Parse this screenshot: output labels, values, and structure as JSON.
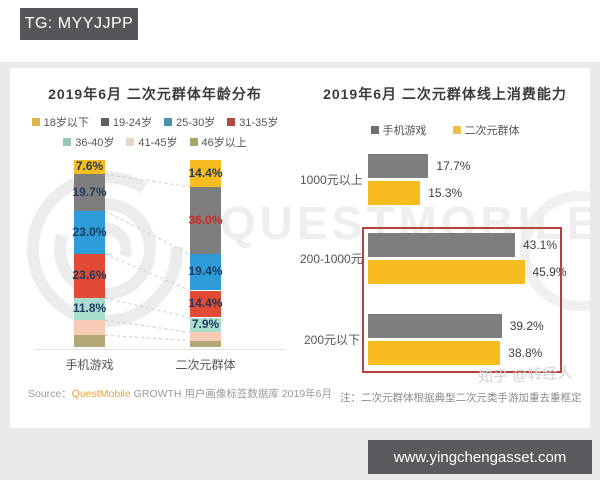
{
  "page": {
    "tg_badge": "TG: MYYJJPP",
    "url_badge": "www.yingchengasset.com",
    "watermark_brand": "QUESTMOBILE",
    "watermark_user": "知乎 @转经人"
  },
  "colors": {
    "badge_bg": "#55565a",
    "highlight_box": "#b5433c",
    "connector_line": "#cccccc",
    "label_navy": "#1d3a5e",
    "label_red": "#d02a20",
    "source_brand_orange": "#e8a23c"
  },
  "chart_data": [
    {
      "type": "bar",
      "subtype": "stacked-column",
      "title": "2019年6月 二次元群体年龄分布",
      "unit": "%",
      "categories": [
        "手机游戏",
        "二次元群体"
      ],
      "legend": [
        {
          "label": "18岁以下",
          "color": "#dfb44c"
        },
        {
          "label": "19-24岁",
          "color": "#5f5f5f"
        },
        {
          "label": "25-30岁",
          "color": "#4493ae"
        },
        {
          "label": "31-35岁",
          "color": "#ae4a3e"
        },
        {
          "label": "36-40岁",
          "color": "#97c9b4"
        },
        {
          "label": "41-45岁",
          "color": "#edd5c6"
        },
        {
          "label": "46岁以上",
          "color": "#a6a468"
        }
      ],
      "series": [
        {
          "name": "18岁以下",
          "color": "#f7bc1f",
          "values": [
            7.6,
            14.4
          ],
          "show_label": [
            true,
            true
          ],
          "label_colors": [
            null,
            null
          ]
        },
        {
          "name": "19-24岁",
          "color": "#7e7e7e",
          "values": [
            19.7,
            36.0
          ],
          "show_label": [
            true,
            true
          ],
          "label_colors": [
            null,
            "#d02a20"
          ]
        },
        {
          "name": "25-30岁",
          "color": "#2d9cd9",
          "values": [
            23.0,
            19.4
          ],
          "show_label": [
            true,
            true
          ],
          "label_colors": [
            null,
            null
          ]
        },
        {
          "name": "31-35岁",
          "color": "#e14b36",
          "values": [
            23.6,
            14.4
          ],
          "show_label": [
            true,
            true
          ],
          "label_colors": [
            null,
            null
          ]
        },
        {
          "name": "36-40岁",
          "color": "#a9dece",
          "values": [
            11.8,
            7.9
          ],
          "show_label": [
            true,
            true
          ],
          "label_colors": [
            null,
            null
          ]
        },
        {
          "name": "41-45岁",
          "color": "#f8cbb7",
          "values": [
            8.0,
            4.5
          ],
          "show_label": [
            false,
            false
          ],
          "label_colors": [
            null,
            null
          ]
        },
        {
          "name": "46岁以上",
          "color": "#b2a876",
          "values": [
            6.3,
            3.4
          ],
          "show_label": [
            false,
            false
          ],
          "label_colors": [
            null,
            null
          ]
        }
      ],
      "source_prefix": "Source：",
      "source_brand": "QuestMobile",
      "source_rest": " GROWTH 用户画像标签数据库 2019年6月"
    },
    {
      "type": "bar",
      "subtype": "grouped-horizontal",
      "title": "2019年6月 二次元群体线上消费能力",
      "unit": "%",
      "categories": [
        "1000元以上",
        "200-1000元",
        "200元以下"
      ],
      "legend": [
        {
          "label": "手机游戏",
          "color": "#6f6f6f"
        },
        {
          "label": "二次元群体",
          "color": "#e9be4d"
        }
      ],
      "series": [
        {
          "name": "手机游戏",
          "color": "#7e7e7e",
          "values": [
            17.7,
            43.1,
            39.2
          ]
        },
        {
          "name": "二次元群体",
          "color": "#f7bc1f",
          "values": [
            15.3,
            45.9,
            38.8
          ]
        }
      ],
      "highlight_categories": [
        "200-1000元",
        "200元以下"
      ],
      "note": "注：二次元群体根据典型二次元类手游加重去重框定"
    }
  ]
}
